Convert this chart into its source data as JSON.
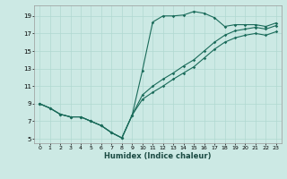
{
  "xlabel": "Humidex (Indice chaleur)",
  "background_color": "#cce9e4",
  "grid_color": "#b0d8d0",
  "line_color": "#1a6b5a",
  "xlim": [
    -0.5,
    23.5
  ],
  "ylim": [
    4.5,
    20.2
  ],
  "xticks": [
    0,
    1,
    2,
    3,
    4,
    5,
    6,
    7,
    8,
    9,
    10,
    11,
    12,
    13,
    14,
    15,
    16,
    17,
    18,
    19,
    20,
    21,
    22,
    23
  ],
  "yticks": [
    5,
    7,
    9,
    11,
    13,
    15,
    17,
    19
  ],
  "line1_x": [
    0,
    1,
    2,
    3,
    4,
    5,
    6,
    7,
    8,
    9,
    10,
    11,
    12,
    13,
    14,
    15,
    16,
    17,
    18,
    19,
    20,
    21,
    22,
    23
  ],
  "line1_y": [
    9.0,
    8.5,
    7.8,
    7.5,
    7.5,
    7.0,
    6.5,
    5.7,
    5.1,
    7.7,
    12.8,
    18.3,
    19.0,
    19.0,
    19.1,
    19.5,
    19.3,
    18.8,
    17.8,
    18.0,
    18.0,
    18.0,
    17.8,
    18.2
  ],
  "line2_x": [
    0,
    1,
    2,
    3,
    4,
    5,
    6,
    7,
    8,
    9,
    10,
    11,
    12,
    13,
    14,
    15,
    16,
    17,
    18,
    19,
    20,
    21,
    22,
    23
  ],
  "line2_y": [
    9.0,
    8.5,
    7.8,
    7.5,
    7.5,
    7.0,
    6.5,
    5.7,
    5.1,
    7.7,
    10.0,
    11.0,
    11.8,
    12.5,
    13.3,
    14.0,
    15.0,
    16.0,
    16.8,
    17.3,
    17.5,
    17.7,
    17.5,
    17.9
  ],
  "line3_x": [
    0,
    1,
    2,
    3,
    4,
    5,
    6,
    7,
    8,
    9,
    10,
    11,
    12,
    13,
    14,
    15,
    16,
    17,
    18,
    19,
    20,
    21,
    22,
    23
  ],
  "line3_y": [
    9.0,
    8.5,
    7.8,
    7.5,
    7.5,
    7.0,
    6.5,
    5.7,
    5.1,
    7.7,
    9.5,
    10.3,
    11.0,
    11.8,
    12.5,
    13.2,
    14.2,
    15.2,
    16.0,
    16.5,
    16.8,
    17.0,
    16.8,
    17.2
  ]
}
